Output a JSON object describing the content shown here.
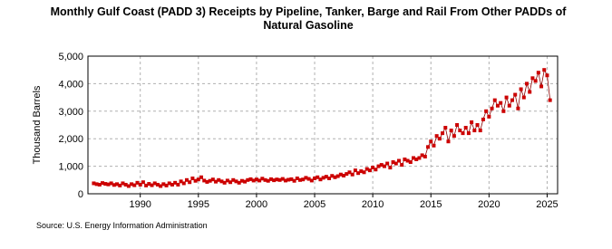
{
  "chart_data": {
    "type": "line",
    "title": "Monthly Gulf Coast (PADD 3)  Receipts by Pipeline, Tanker, Barge and Rail From Other PADDs of Natural Gasoline",
    "y_label": "Thousand Barrels",
    "source": "Source: U.S. Energy Information Administration",
    "xlim": [
      1985.5,
      2025.9
    ],
    "ylim": [
      0,
      5000
    ],
    "xticks": [
      1990,
      1995,
      2000,
      2005,
      2010,
      2015,
      2020,
      2025
    ],
    "yticks": [
      0,
      {
        "value": 1000,
        "label": "1,000"
      },
      {
        "value": 2000,
        "label": "2,000"
      },
      {
        "value": 3000,
        "label": "3,000"
      },
      {
        "value": 4000,
        "label": "4,000"
      },
      {
        "value": 5000,
        "label": "5,000"
      }
    ],
    "grid": true,
    "x": [
      1986,
      1986.25,
      1986.5,
      1986.75,
      1987,
      1987.25,
      1987.5,
      1987.75,
      1988,
      1988.25,
      1988.5,
      1988.75,
      1989,
      1989.25,
      1989.5,
      1989.75,
      1990,
      1990.25,
      1990.5,
      1990.75,
      1991,
      1991.25,
      1991.5,
      1991.75,
      1992,
      1992.25,
      1992.5,
      1992.75,
      1993,
      1993.25,
      1993.5,
      1993.75,
      1994,
      1994.25,
      1994.5,
      1994.75,
      1995,
      1995.25,
      1995.5,
      1995.75,
      1996,
      1996.25,
      1996.5,
      1996.75,
      1997,
      1997.25,
      1997.5,
      1997.75,
      1998,
      1998.25,
      1998.5,
      1998.75,
      1999,
      1999.25,
      1999.5,
      1999.75,
      2000,
      2000.25,
      2000.5,
      2000.75,
      2001,
      2001.25,
      2001.5,
      2001.75,
      2002,
      2002.25,
      2002.5,
      2002.75,
      2003,
      2003.25,
      2003.5,
      2003.75,
      2004,
      2004.25,
      2004.5,
      2004.75,
      2005,
      2005.25,
      2005.5,
      2005.75,
      2006,
      2006.25,
      2006.5,
      2006.75,
      2007,
      2007.25,
      2007.5,
      2007.75,
      2008,
      2008.25,
      2008.5,
      2008.75,
      2009,
      2009.25,
      2009.5,
      2009.75,
      2010,
      2010.25,
      2010.5,
      2010.75,
      2011,
      2011.25,
      2011.5,
      2011.75,
      2012,
      2012.25,
      2012.5,
      2012.75,
      2013,
      2013.25,
      2013.5,
      2013.75,
      2014,
      2014.25,
      2014.5,
      2014.75,
      2015,
      2015.25,
      2015.5,
      2015.75,
      2016,
      2016.25,
      2016.5,
      2016.75,
      2017,
      2017.25,
      2017.5,
      2017.75,
      2018,
      2018.25,
      2018.5,
      2018.75,
      2019,
      2019.25,
      2019.5,
      2019.75,
      2020,
      2020.25,
      2020.5,
      2020.75,
      2021,
      2021.25,
      2021.5,
      2021.75,
      2022,
      2022.25,
      2022.5,
      2022.75,
      2023,
      2023.25,
      2023.5,
      2023.75,
      2024,
      2024.25,
      2024.5,
      2024.75,
      2025,
      2025.25
    ],
    "series": [
      {
        "color": "#cc0000",
        "line_color": "#8b0000",
        "values": [
          380,
          350,
          330,
          390,
          360,
          340,
          380,
          320,
          350,
          300,
          380,
          330,
          280,
          350,
          310,
          400,
          330,
          420,
          300,
          360,
          310,
          380,
          330,
          280,
          350,
          300,
          380,
          330,
          400,
          330,
          450,
          380,
          500,
          420,
          560,
          470,
          520,
          600,
          480,
          430,
          470,
          520,
          440,
          500,
          450,
          400,
          480,
          420,
          500,
          450,
          400,
          470,
          440,
          500,
          530,
          480,
          520,
          480,
          550,
          500,
          470,
          530,
          490,
          520,
          500,
          540,
          480,
          510,
          530,
          470,
          560,
          500,
          520,
          580,
          540,
          480,
          560,
          600,
          520,
          580,
          620,
          560,
          650,
          600,
          640,
          700,
          660,
          720,
          780,
          700,
          850,
          750,
          820,
          780,
          900,
          850,
          950,
          880,
          1000,
          1050,
          1000,
          1100,
          950,
          1150,
          1100,
          1200,
          1050,
          1250,
          1200,
          1150,
          1300,
          1250,
          1300,
          1400,
          1350,
          1700,
          1900,
          1750,
          2100,
          2000,
          2200,
          2400,
          1900,
          2300,
          2100,
          2500,
          2300,
          2200,
          2400,
          2200,
          2600,
          2300,
          2500,
          2300,
          2700,
          3000,
          2800,
          3100,
          3400,
          3200,
          3300,
          3000,
          3500,
          3200,
          3400,
          3600,
          3100,
          3800,
          3500,
          4000,
          3700,
          4200,
          4100,
          4400,
          3900,
          4500,
          4300,
          3400
        ]
      }
    ]
  }
}
